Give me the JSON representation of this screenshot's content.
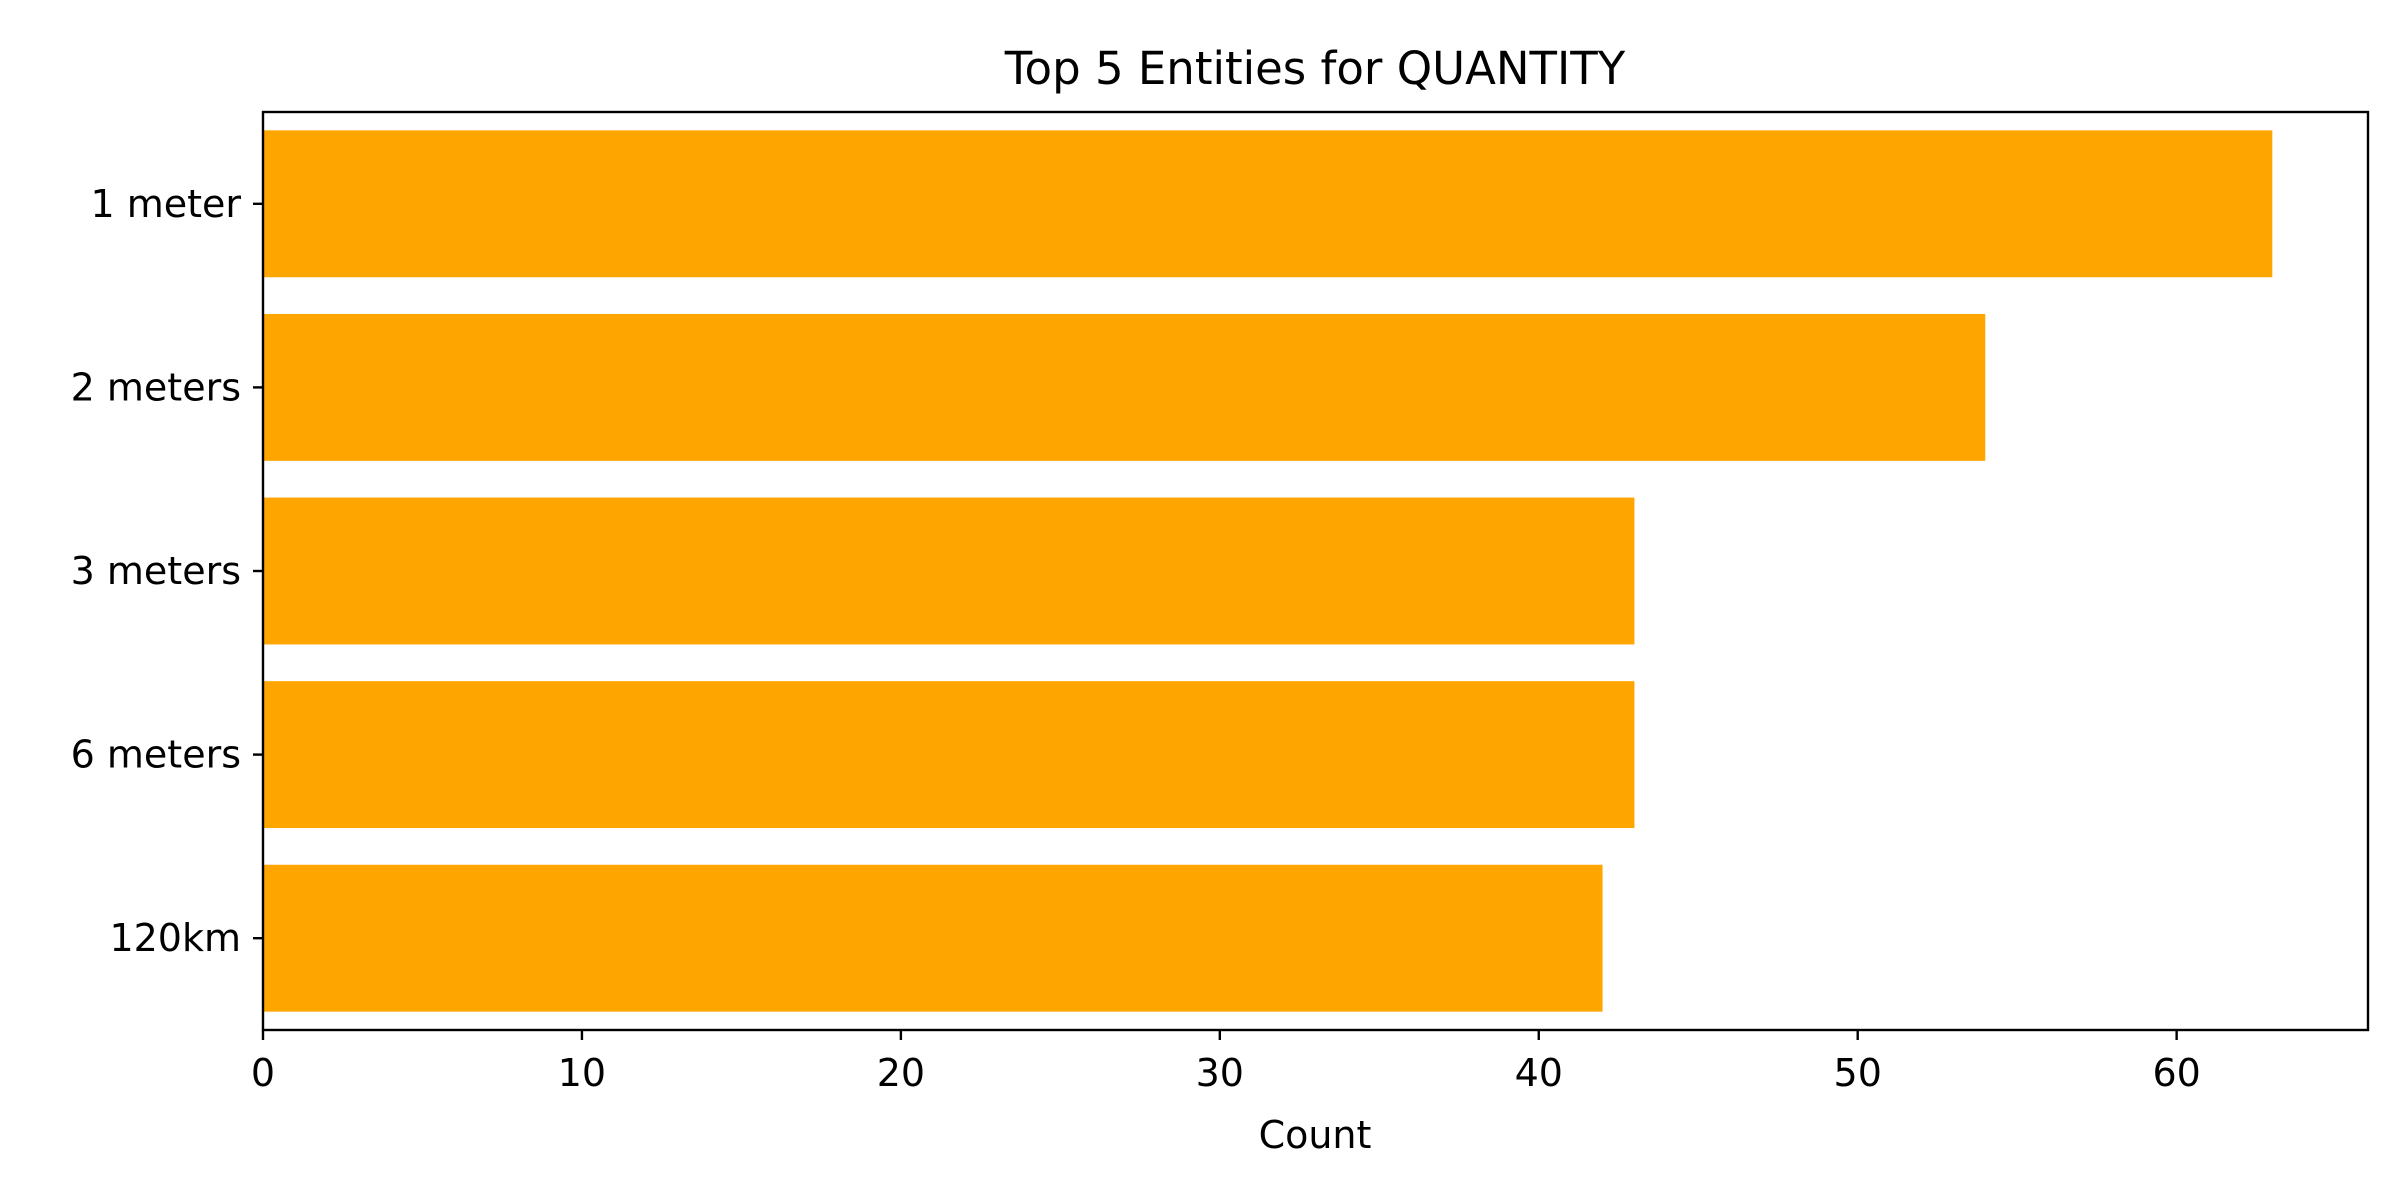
{
  "chart_data": {
    "type": "bar",
    "orientation": "horizontal",
    "title": "Top 5 Entities for QUANTITY",
    "xlabel": "Count",
    "ylabel": "",
    "categories": [
      "1 meter",
      "2 meters",
      "3 meters",
      "6 meters",
      "120km"
    ],
    "values": [
      63,
      54,
      43,
      43,
      42
    ],
    "xlim": [
      0,
      66
    ],
    "xticks": [
      0,
      10,
      20,
      30,
      40,
      50,
      60
    ],
    "grid": false,
    "legend": "none",
    "colors": {
      "bar": "#FFA500",
      "axis": "#000000",
      "background": "#FFFFFF"
    }
  }
}
